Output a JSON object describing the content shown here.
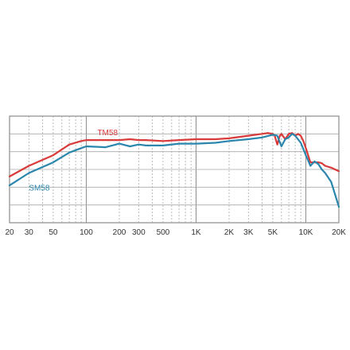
{
  "chart_data": {
    "type": "line",
    "xscale": "log",
    "xlim": [
      20,
      20000
    ],
    "ylim": [
      0,
      6
    ],
    "grid": true,
    "x_tick_labels": [
      {
        "value": 20,
        "label": "20"
      },
      {
        "value": 30,
        "label": "30"
      },
      {
        "value": 50,
        "label": "50"
      },
      {
        "value": 100,
        "label": "100"
      },
      {
        "value": 200,
        "label": "200"
      },
      {
        "value": 300,
        "label": "300"
      },
      {
        "value": 500,
        "label": "500"
      },
      {
        "value": 1000,
        "label": "1K"
      },
      {
        "value": 2000,
        "label": "2K"
      },
      {
        "value": 3000,
        "label": "3K"
      },
      {
        "value": 5000,
        "label": "5K"
      },
      {
        "value": 10000,
        "label": "10K"
      },
      {
        "value": 20000,
        "label": "20K"
      }
    ],
    "series": [
      {
        "name": "TM58",
        "color": "#d93a3a",
        "x": [
          20,
          30,
          50,
          70,
          90,
          100,
          150,
          200,
          250,
          300,
          350,
          500,
          700,
          1000,
          1500,
          2000,
          3000,
          4000,
          4500,
          5000,
          5200,
          5500,
          5800,
          6000,
          6500,
          7000,
          7500,
          8000,
          8500,
          9000,
          9500,
          10000,
          11000,
          12000,
          13000,
          14000,
          15000,
          17000,
          20000
        ],
        "y": [
          2.6,
          3.2,
          3.8,
          4.4,
          4.6,
          4.65,
          4.65,
          4.65,
          4.7,
          4.65,
          4.65,
          4.6,
          4.65,
          4.7,
          4.7,
          4.75,
          4.9,
          5.0,
          5.05,
          5.0,
          4.9,
          4.4,
          4.9,
          5.0,
          4.7,
          5.0,
          5.05,
          4.9,
          5.0,
          4.9,
          4.6,
          4.2,
          3.4,
          3.4,
          3.4,
          3.35,
          3.2,
          3.1,
          2.9
        ]
      },
      {
        "name": "SM58",
        "color": "#2a86ad",
        "x": [
          20,
          30,
          50,
          70,
          90,
          100,
          150,
          200,
          250,
          300,
          350,
          500,
          700,
          1000,
          1500,
          2000,
          3000,
          4000,
          5000,
          5500,
          6000,
          6500,
          7000,
          7500,
          8000,
          9000,
          10000,
          11000,
          12000,
          13000,
          14000,
          15000,
          17000,
          20000
        ],
        "y": [
          2.1,
          2.8,
          3.4,
          3.95,
          4.2,
          4.3,
          4.25,
          4.45,
          4.3,
          4.4,
          4.35,
          4.35,
          4.45,
          4.45,
          4.5,
          4.6,
          4.7,
          4.8,
          4.95,
          4.9,
          4.3,
          4.7,
          4.8,
          5.0,
          4.9,
          4.5,
          3.8,
          3.2,
          3.45,
          3.3,
          3.0,
          2.8,
          2.3,
          0.9
        ]
      }
    ]
  }
}
